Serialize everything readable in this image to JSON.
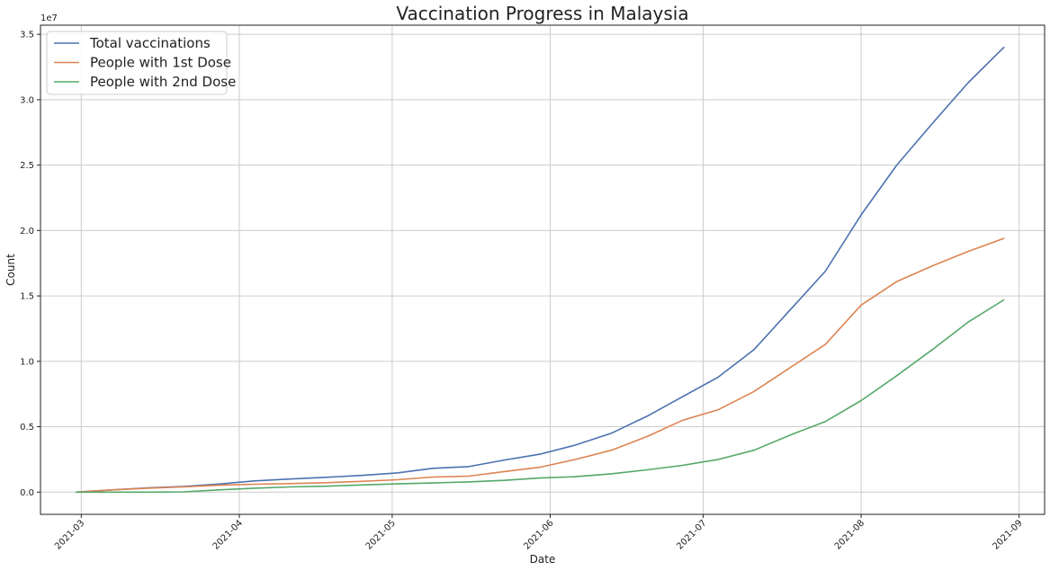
{
  "chart_data": {
    "type": "line",
    "title": "Vaccination Progress in Malaysia",
    "xlabel": "Date",
    "ylabel": "Count",
    "y_offset_label": "1e7",
    "grid": true,
    "legend_position": "top-left",
    "xlim": [
      "2021-02-21",
      "2021-09-06"
    ],
    "ylim": [
      -1700000,
      35700000
    ],
    "x_ticks": [
      "2021-03",
      "2021-04",
      "2021-05",
      "2021-06",
      "2021-07",
      "2021-08",
      "2021-09"
    ],
    "x_tick_dates": [
      "2021-03-01",
      "2021-04-01",
      "2021-05-01",
      "2021-06-01",
      "2021-07-01",
      "2021-08-01",
      "2021-09-01"
    ],
    "y_ticks": [
      0,
      5000000,
      10000000,
      15000000,
      20000000,
      25000000,
      30000000,
      35000000
    ],
    "y_tick_labels": [
      "0.0",
      "0.5",
      "1.0",
      "1.5",
      "2.0",
      "2.5",
      "3.0",
      "3.5"
    ],
    "x": [
      "2021-02-28",
      "2021-03-07",
      "2021-03-14",
      "2021-03-21",
      "2021-03-28",
      "2021-04-04",
      "2021-04-11",
      "2021-04-18",
      "2021-04-25",
      "2021-05-02",
      "2021-05-09",
      "2021-05-16",
      "2021-05-23",
      "2021-05-30",
      "2021-06-06",
      "2021-06-13",
      "2021-06-20",
      "2021-06-27",
      "2021-07-04",
      "2021-07-11",
      "2021-07-18",
      "2021-07-25",
      "2021-08-01",
      "2021-08-08",
      "2021-08-15",
      "2021-08-22",
      "2021-08-29"
    ],
    "series": [
      {
        "name": "Total vaccinations",
        "color": "#4c72b0",
        "values": [
          0,
          170000,
          330000,
          430000,
          620000,
          860000,
          1000000,
          1130000,
          1280000,
          1470000,
          1820000,
          1950000,
          2450000,
          2900000,
          3600000,
          4500000,
          5800000,
          7300000,
          8800000,
          10900000,
          13900000,
          16900000,
          21200000,
          25000000,
          28200000,
          31300000,
          34000000
        ]
      },
      {
        "name": "People with 1st Dose",
        "color": "#dd8452",
        "values": [
          0,
          170000,
          300000,
          400000,
          530000,
          600000,
          650000,
          720000,
          820000,
          950000,
          1150000,
          1220000,
          1570000,
          1900000,
          2500000,
          3200000,
          4250000,
          5500000,
          6300000,
          7700000,
          9500000,
          11300000,
          14300000,
          16100000,
          17300000,
          18400000,
          19400000
        ]
      },
      {
        "name": "People with 2nd Dose",
        "color": "#55a868",
        "values": [
          0,
          0,
          0,
          20000,
          170000,
          300000,
          400000,
          450000,
          550000,
          630000,
          700000,
          780000,
          900000,
          1080000,
          1180000,
          1400000,
          1700000,
          2050000,
          2500000,
          3200000,
          4350000,
          5400000,
          7000000,
          8900000,
          10900000,
          13000000,
          14700000
        ]
      }
    ]
  }
}
